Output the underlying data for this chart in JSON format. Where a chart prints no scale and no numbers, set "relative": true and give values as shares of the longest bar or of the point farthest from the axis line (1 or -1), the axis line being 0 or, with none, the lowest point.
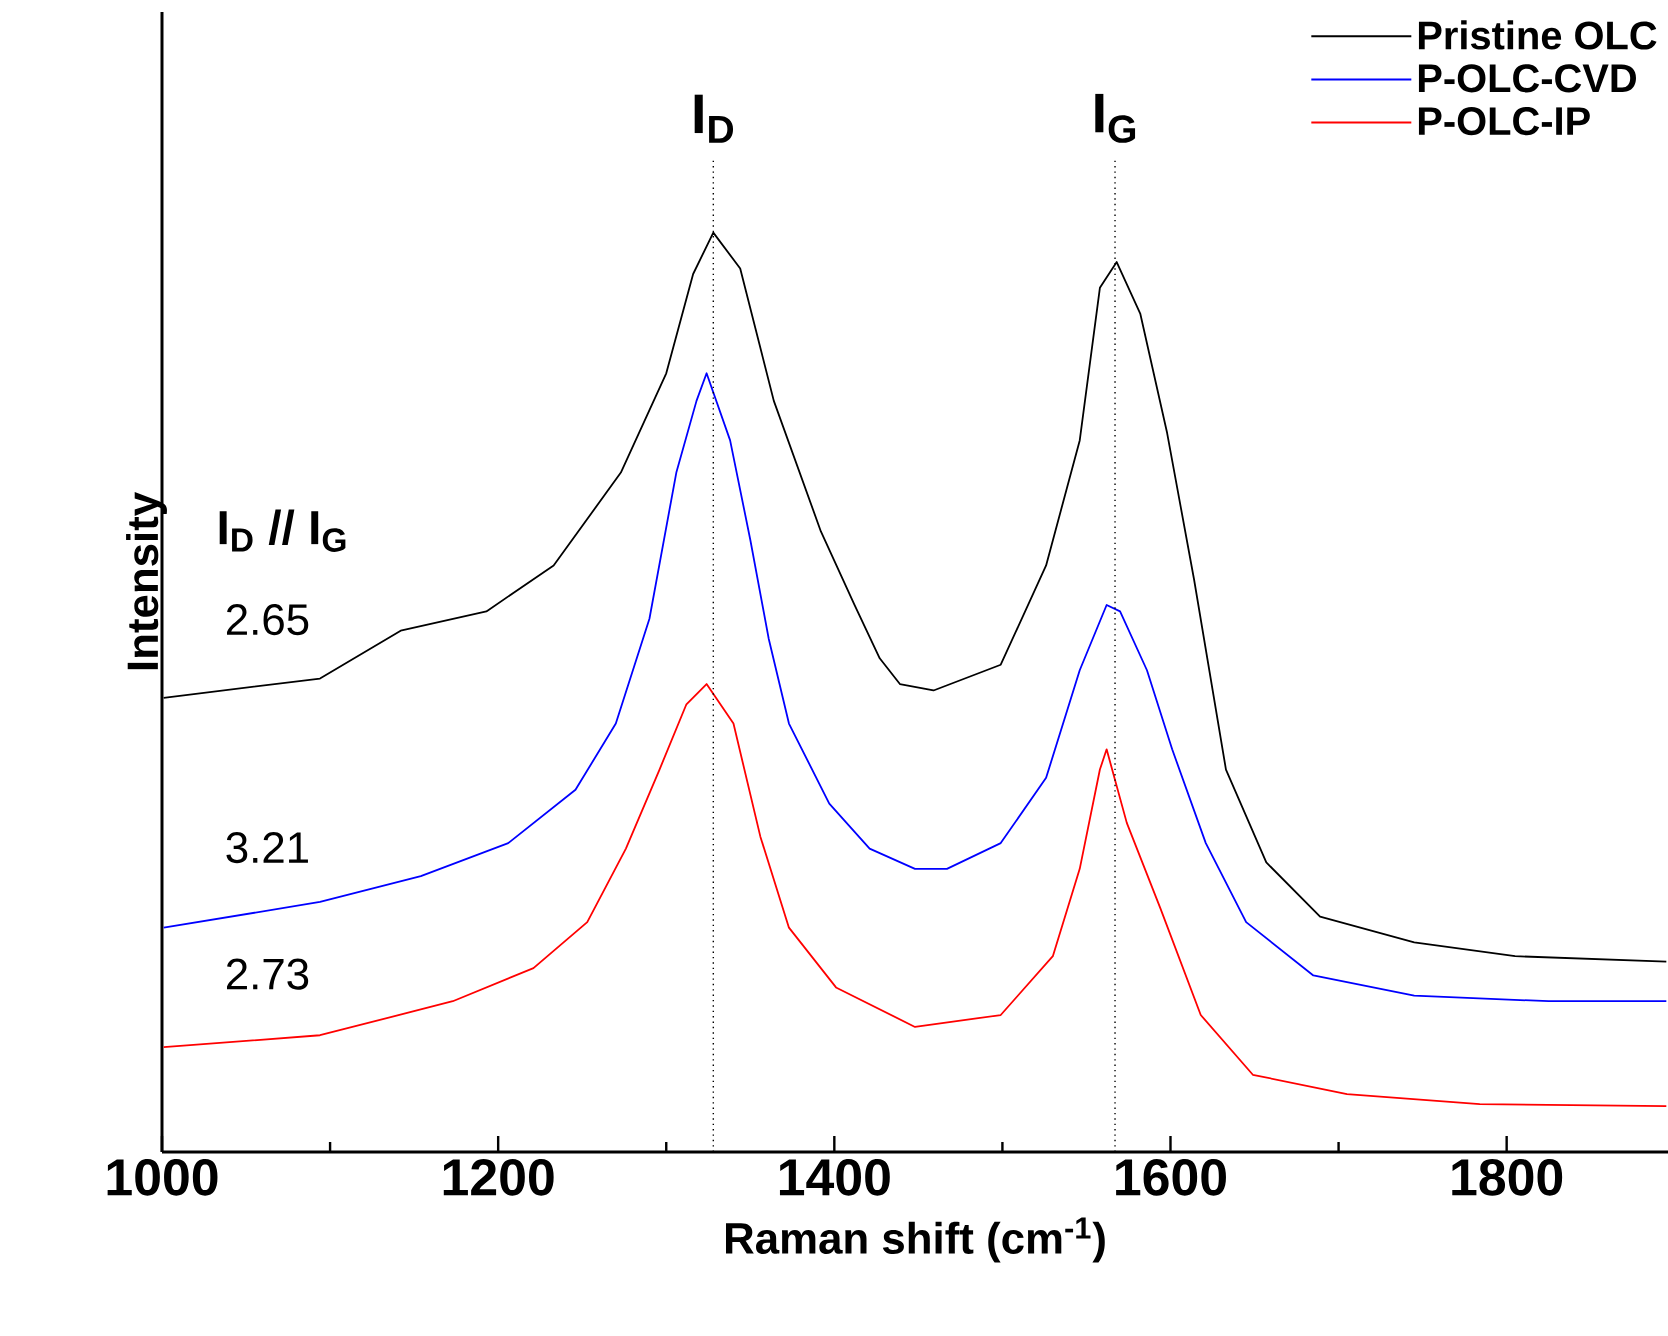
{
  "chart_data": {
    "type": "line",
    "relative": true,
    "xlabel": "Raman shift (cm$^{-1}$)",
    "ylabel": "Intensity",
    "xlim": [
      1000,
      1896
    ],
    "xticks": [
      1000,
      1200,
      1400,
      1600,
      1800
    ],
    "legend": "top right",
    "series": [
      {
        "name": "Pristine OLC",
        "color": "#000000",
        "x": [
          1001,
          1094,
          1142,
          1193,
          1233,
          1273,
          1300,
          1316,
          1328,
          1344,
          1364,
          1392,
          1412,
          1427,
          1439,
          1459,
          1499,
          1526,
          1546,
          1558,
          1568,
          1582,
          1598,
          1614,
          1633,
          1657,
          1689,
          1745,
          1805,
          1895
        ],
        "values": [
          0.494,
          0.515,
          0.567,
          0.588,
          0.638,
          0.739,
          0.847,
          0.955,
          1,
          0.961,
          0.817,
          0.675,
          0.595,
          0.537,
          0.509,
          0.502,
          0.53,
          0.638,
          0.774,
          0.94,
          0.968,
          0.912,
          0.782,
          0.623,
          0.416,
          0.315,
          0.256,
          0.228,
          0.213,
          0.207
        ]
      },
      {
        "name": "P-OLC-CVD",
        "color": "#0000ff",
        "x": [
          1001,
          1094,
          1154,
          1206,
          1246,
          1270,
          1290,
          1306,
          1318,
          1324,
          1338,
          1350,
          1361,
          1373,
          1397,
          1421,
          1448,
          1467,
          1499,
          1526,
          1546,
          1562,
          1570,
          1586,
          1601,
          1621,
          1645,
          1685,
          1745,
          1825,
          1895
        ],
        "values": [
          0.244,
          0.272,
          0.3,
          0.336,
          0.394,
          0.466,
          0.58,
          0.739,
          0.817,
          0.847,
          0.774,
          0.666,
          0.558,
          0.466,
          0.379,
          0.33,
          0.308,
          0.308,
          0.336,
          0.407,
          0.524,
          0.595,
          0.588,
          0.524,
          0.438,
          0.336,
          0.25,
          0.192,
          0.17,
          0.164,
          0.164
        ]
      },
      {
        "name": "P-OLC-IP",
        "color": "#ff0000",
        "x": [
          1001,
          1094,
          1173,
          1221,
          1253,
          1276,
          1296,
          1312,
          1324,
          1340,
          1356,
          1373,
          1401,
          1448,
          1499,
          1530,
          1546,
          1558,
          1562,
          1574,
          1594,
          1618,
          1649,
          1705,
          1784,
          1895
        ],
        "values": [
          0.114,
          0.127,
          0.164,
          0.2,
          0.25,
          0.33,
          0.416,
          0.487,
          0.509,
          0.466,
          0.343,
          0.244,
          0.179,
          0.136,
          0.149,
          0.213,
          0.308,
          0.416,
          0.438,
          0.358,
          0.265,
          0.149,
          0.084,
          0.063,
          0.052,
          0.05
        ]
      }
    ],
    "ref_lines": [
      {
        "axis": "x",
        "value": 1328,
        "label": "I$_{D}$",
        "line_style": "dotted"
      },
      {
        "axis": "x",
        "value": 1567,
        "label": "I$_{G}$",
        "line_style": "dotted"
      }
    ],
    "annotations": [
      "I$_{D}$ // I$_{G}$",
      "2.65",
      "3.21",
      "2.73"
    ]
  }
}
